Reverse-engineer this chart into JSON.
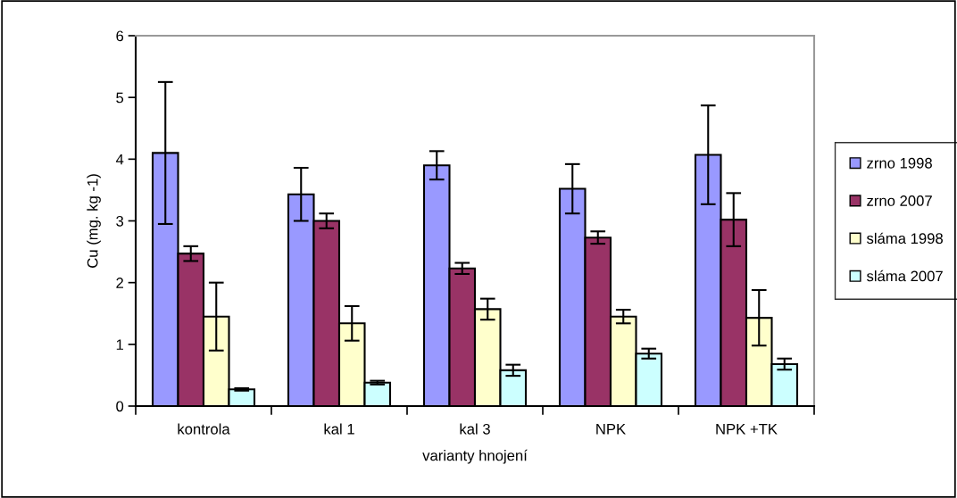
{
  "chart_data": {
    "type": "bar",
    "xlabel": "varianty hnojení",
    "ylabel": "Cu (mg. kg -1)",
    "categories": [
      "kontrola",
      "kal 1",
      "kal 3",
      "NPK",
      "NPK +TK"
    ],
    "series": [
      {
        "name": "zrno 1998",
        "color": "#9999ff",
        "values": [
          4.1,
          3.43,
          3.9,
          3.52,
          4.07
        ],
        "errors": [
          1.15,
          0.43,
          0.23,
          0.4,
          0.8
        ]
      },
      {
        "name": "zrno 2007",
        "color": "#993366",
        "values": [
          2.47,
          3.0,
          2.23,
          2.73,
          3.02
        ],
        "errors": [
          0.12,
          0.12,
          0.09,
          0.1,
          0.43
        ]
      },
      {
        "name": "sláma 1998",
        "color": "#ffffcc",
        "values": [
          1.45,
          1.34,
          1.57,
          1.45,
          1.43
        ],
        "errors": [
          0.55,
          0.28,
          0.17,
          0.11,
          0.45
        ]
      },
      {
        "name": "sláma 2007",
        "color": "#ccffff",
        "values": [
          0.27,
          0.38,
          0.58,
          0.85,
          0.68
        ],
        "errors": [
          0.02,
          0.03,
          0.09,
          0.08,
          0.09
        ]
      }
    ],
    "ylim": [
      0,
      6
    ],
    "yticks": [
      0,
      1,
      2,
      3,
      4,
      5,
      6
    ],
    "grid": false,
    "legend": "right"
  }
}
